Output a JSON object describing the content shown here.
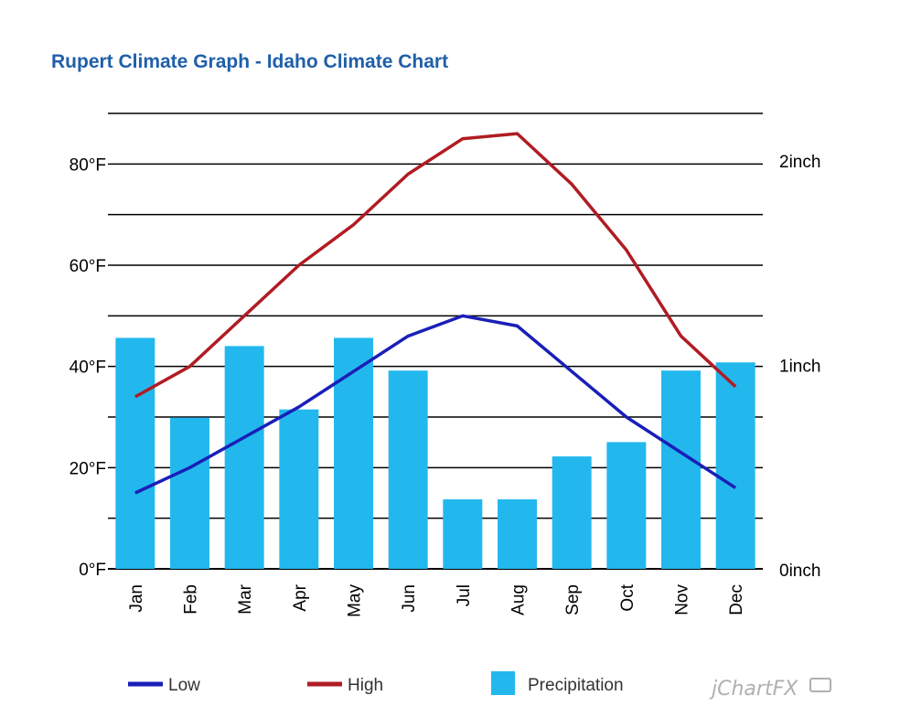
{
  "title": "Rupert Climate Graph - Idaho Climate Chart",
  "watermark": "jChartFX",
  "colors": {
    "title": "#1f5fa9",
    "low": "#1a1fb8",
    "high": "#b01c23",
    "precipitation": "#22b8ee",
    "grid": "#000000"
  },
  "chart_data": {
    "type": "bar",
    "title": "Rupert Climate Graph - Idaho Climate Chart",
    "categories": [
      "Jan",
      "Feb",
      "Mar",
      "Apr",
      "May",
      "Jun",
      "Jul",
      "Aug",
      "Sep",
      "Oct",
      "Nov",
      "Dec"
    ],
    "y_left": {
      "unit": "°F",
      "ylim": [
        0,
        90
      ],
      "ticks": [
        0,
        20,
        40,
        60,
        80
      ],
      "tick_labels": [
        "0°F",
        "20°F",
        "40°F",
        "60°F",
        "80°F"
      ]
    },
    "y_right": {
      "unit": "inch",
      "ylim": [
        0,
        2
      ],
      "ticks": [
        0,
        1,
        2
      ],
      "tick_labels": [
        "0inch",
        "1inch",
        "2inch"
      ]
    },
    "grid": true,
    "legend_position": "bottom",
    "series": [
      {
        "name": "Precipitation",
        "type": "bar",
        "axis": "right",
        "values": [
          1.13,
          0.74,
          1.09,
          0.78,
          1.13,
          0.97,
          0.34,
          0.34,
          0.55,
          0.62,
          0.97,
          1.01
        ]
      },
      {
        "name": "Low",
        "type": "line",
        "axis": "left",
        "values": [
          15,
          20,
          26,
          32,
          39,
          46,
          50,
          48,
          39,
          30,
          23,
          16
        ]
      },
      {
        "name": "High",
        "type": "line",
        "axis": "left",
        "values": [
          34,
          40,
          50,
          60,
          68,
          78,
          85,
          86,
          76,
          63,
          46,
          36
        ]
      }
    ]
  }
}
